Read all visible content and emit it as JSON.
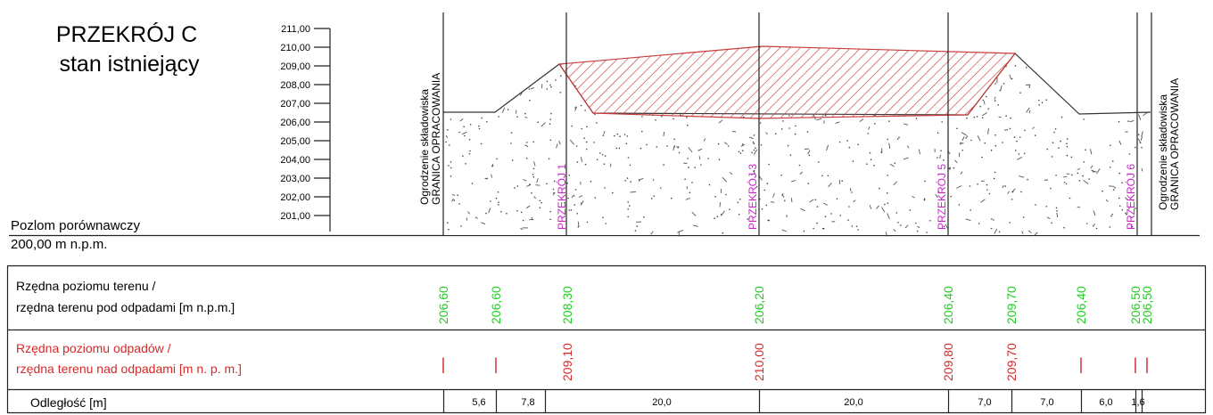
{
  "title": {
    "line1": "PRZEKRÓJ C",
    "line2": "stan istniejący"
  },
  "datum": {
    "label": "Pozlom porównawczy",
    "value": "200,00 m n.p.m."
  },
  "scale_ticks": [
    "211,00",
    "210,00",
    "209,00",
    "208,00",
    "207,00",
    "206,00",
    "205,00",
    "204,00",
    "203,00",
    "202,00",
    "201,00"
  ],
  "boundary_left": {
    "line1": "Ogrodzenie składowiska",
    "line2": "GRANICA OPRACOWANIA"
  },
  "boundary_right": {
    "line1": "Ogrodzenie składowiska",
    "line2": "GRANICA OPRACOWANIA"
  },
  "section_labels": [
    "PRZEKRÓJ 1",
    "PRZEKRÓJ 3",
    "PRZEKRÓJ 5",
    "PRZEKRÓJ 6"
  ],
  "row_terrain": {
    "line1": "Rzędna poziomu terenu /",
    "line2": "rzędna terenu pod odpadami  [m n.p.m.]"
  },
  "row_waste": {
    "line1": "Rzędna poziomu odpadów /",
    "line2": "rzędna terenu nad odpadami [m  n. p. m.]"
  },
  "row_distance": {
    "label": "Odległość [m]"
  },
  "terrain_values": [
    "206,60",
    "206,60",
    "208,30",
    "206,20",
    "206,40",
    "209,70",
    "206,40",
    "206,50",
    "206,50"
  ],
  "waste_values": [
    "|",
    "|",
    "209,10",
    "210,00",
    "209,80",
    "209,70",
    "|",
    "|",
    "|"
  ],
  "distances": [
    "5,6",
    "7,8",
    "20,0",
    "20,0",
    "7,0",
    "7,0",
    "6,0",
    "1,6"
  ],
  "colors": {
    "green": "#22cc22",
    "red": "#d42a2a",
    "magenta": "#cc22cc",
    "hatch": "#c83c3c"
  }
}
